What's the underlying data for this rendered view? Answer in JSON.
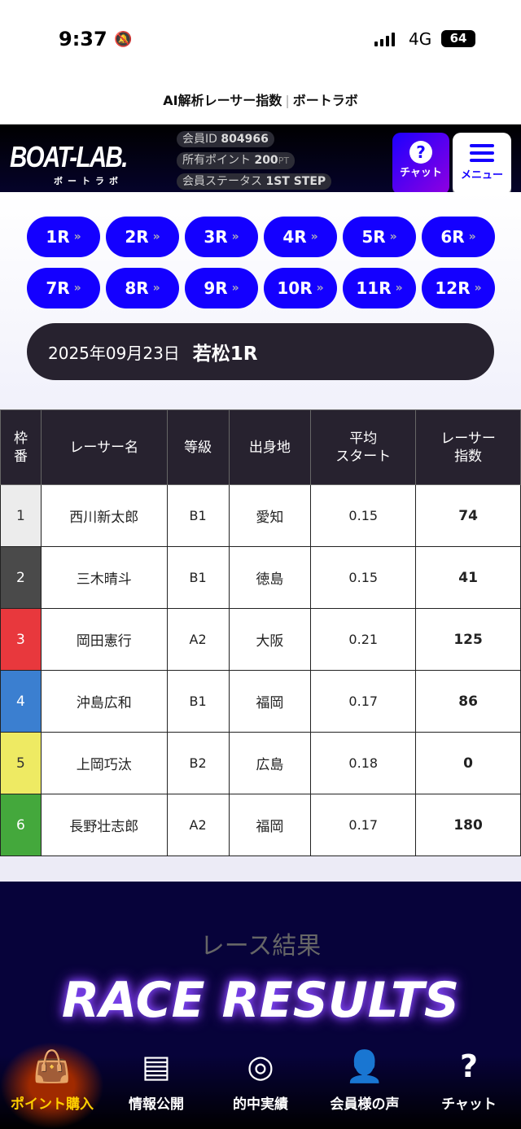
{
  "status_bar": {
    "time": "9:37",
    "network": "4G",
    "battery": "64"
  },
  "page_title": {
    "main": "AI解析レーサー指数",
    "separator": "|",
    "site": "ボートラボ"
  },
  "header": {
    "logo": "BOAT-LAB.",
    "logo_sub": "ボートラボ",
    "member_id_label": "会員ID",
    "member_id": "804966",
    "points_label": "所有ポイント",
    "points": "200",
    "points_unit": "PT",
    "status_label": "会員ステータス",
    "status": "1ST STEP",
    "chat_label": "チャット",
    "menu_label": "メニュー"
  },
  "races": [
    "1R",
    "2R",
    "3R",
    "4R",
    "5R",
    "6R",
    "7R",
    "8R",
    "9R",
    "10R",
    "11R",
    "12R"
  ],
  "race_info": {
    "date": "2025年09月23日",
    "venue_race": "若松1R"
  },
  "table": {
    "headers": [
      "枠番",
      "レーサー名",
      "等級",
      "出身地",
      "平均スタート",
      "レーサー指数"
    ],
    "header_lines": [
      [
        "枠",
        "番"
      ],
      [
        "レーサー名"
      ],
      [
        "等級"
      ],
      [
        "出身地"
      ],
      [
        "平均",
        "スタート"
      ],
      [
        "レーサー",
        "指数"
      ]
    ],
    "frame_colors": [
      "#ececec",
      "#4a4a4a",
      "#e8383d",
      "#3b7fd0",
      "#eeea63",
      "#44a83c"
    ],
    "rows": [
      {
        "frame": "1",
        "name": "西川新太郎",
        "class": "B1",
        "home": "愛知",
        "avg_start": "0.15",
        "index": "74"
      },
      {
        "frame": "2",
        "name": "三木晴斗",
        "class": "B1",
        "home": "徳島",
        "avg_start": "0.15",
        "index": "41"
      },
      {
        "frame": "3",
        "name": "岡田憲行",
        "class": "A2",
        "home": "大阪",
        "avg_start": "0.21",
        "index": "125"
      },
      {
        "frame": "4",
        "name": "沖島広和",
        "class": "B1",
        "home": "福岡",
        "avg_start": "0.17",
        "index": "86"
      },
      {
        "frame": "5",
        "name": "上岡巧汰",
        "class": "B2",
        "home": "広島",
        "avg_start": "0.18",
        "index": "0"
      },
      {
        "frame": "6",
        "name": "長野壮志郎",
        "class": "A2",
        "home": "福岡",
        "avg_start": "0.17",
        "index": "180"
      }
    ]
  },
  "results": {
    "title": "RACE RESULTS",
    "subtitle": "レース結果"
  },
  "bottom_nav": [
    {
      "label": "ポイント購入",
      "icon": "shopping-bag-icon",
      "active": true
    },
    {
      "label": "情報公開",
      "icon": "document-scan-icon"
    },
    {
      "label": "的中実績",
      "icon": "target-click-icon"
    },
    {
      "label": "会員様の声",
      "icon": "user-voice-icon"
    },
    {
      "label": "チャット",
      "icon": "question-chat-icon"
    }
  ]
}
